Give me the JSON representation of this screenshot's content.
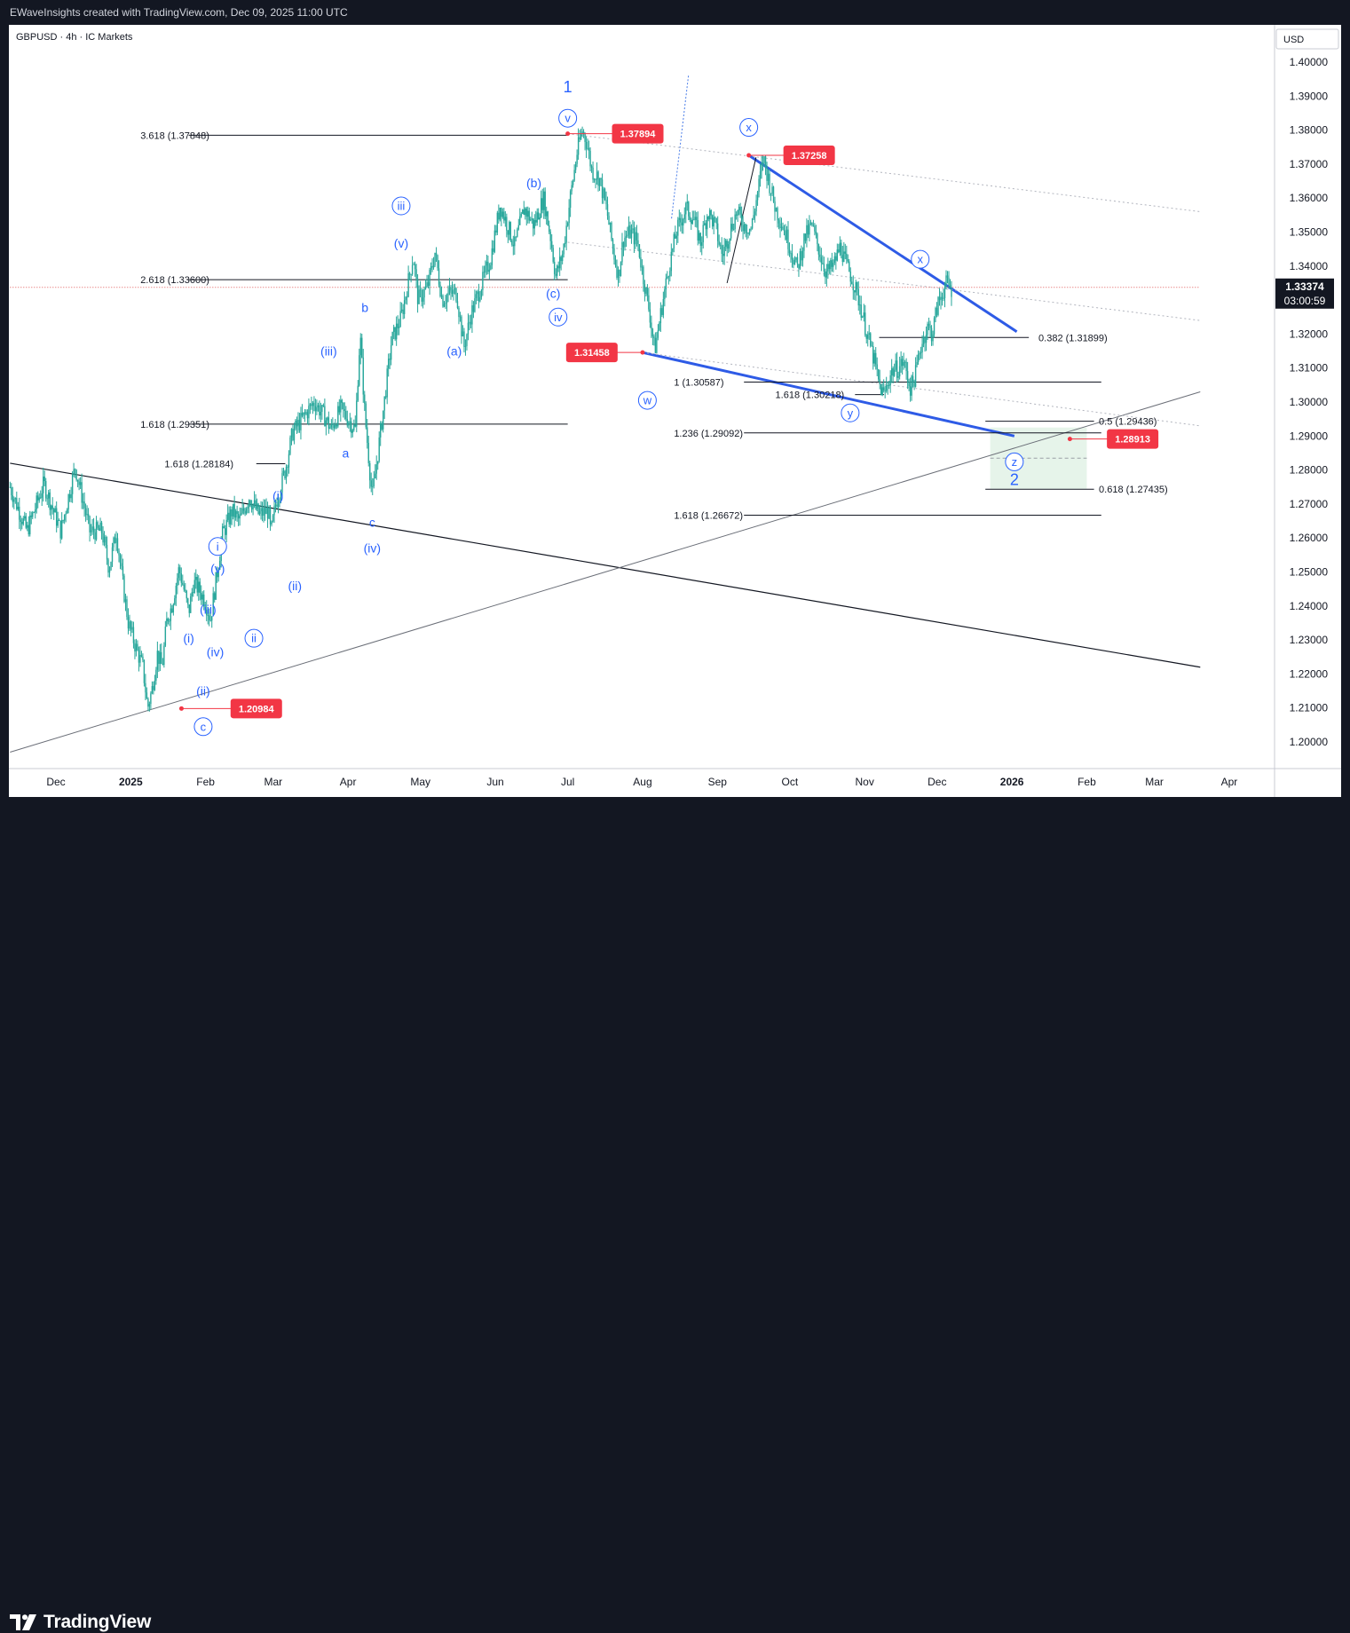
{
  "header": {
    "text": "EWaveInsights created with TradingView.com, Dec 09, 2025 11:00 UTC"
  },
  "symbol_info": "GBPUSD · 4h · IC Markets",
  "currency": "USD",
  "branding": {
    "name": "TradingView",
    "logo_icon": "tradingview-logo-icon"
  },
  "last_price": {
    "value": "1.33374",
    "countdown": "03:00:59"
  },
  "colors": {
    "background": "#131722",
    "pane": "#ffffff",
    "candle": "#26a69a",
    "wave_label": "#2962ff",
    "blue_line": "#2e5be6",
    "red_badge": "#f23645",
    "target_zone": "#e6f4ea"
  },
  "chart_data": {
    "type": "candlestick",
    "symbol": "GBPUSD",
    "interval": "4h",
    "broker": "IC Markets",
    "ylim": [
      1.19,
      1.41
    ],
    "y_ticks": [
      "1.40000",
      "1.39000",
      "1.38000",
      "1.37000",
      "1.36000",
      "1.35000",
      "1.34000",
      "1.33000",
      "1.32000",
      "1.31000",
      "1.30000",
      "1.29000",
      "1.28000",
      "1.27000",
      "1.26000",
      "1.25000",
      "1.24000",
      "1.23000",
      "1.22000",
      "1.21000",
      "1.20000"
    ],
    "x_ticks": [
      {
        "label": "Dec",
        "day": 0,
        "bold": false
      },
      {
        "label": "2025",
        "day": 31,
        "bold": true
      },
      {
        "label": "Feb",
        "day": 62,
        "bold": false
      },
      {
        "label": "Mar",
        "day": 90,
        "bold": false
      },
      {
        "label": "Apr",
        "day": 121,
        "bold": false
      },
      {
        "label": "May",
        "day": 151,
        "bold": false
      },
      {
        "label": "Jun",
        "day": 182,
        "bold": false
      },
      {
        "label": "Jul",
        "day": 212,
        "bold": false
      },
      {
        "label": "Aug",
        "day": 243,
        "bold": false
      },
      {
        "label": "Sep",
        "day": 274,
        "bold": false
      },
      {
        "label": "Oct",
        "day": 304,
        "bold": false
      },
      {
        "label": "Nov",
        "day": 335,
        "bold": false
      },
      {
        "label": "Dec",
        "day": 365,
        "bold": false
      },
      {
        "label": "2026",
        "day": 396,
        "bold": true
      },
      {
        "label": "Feb",
        "day": 427,
        "bold": false
      },
      {
        "label": "Mar",
        "day": 455,
        "bold": false
      },
      {
        "label": "Apr",
        "day": 486,
        "bold": false
      }
    ],
    "price_path": [
      [
        -19,
        1.275
      ],
      [
        -12,
        1.262
      ],
      [
        -5,
        1.276
      ],
      [
        2,
        1.262
      ],
      [
        8,
        1.281
      ],
      [
        14,
        1.262
      ],
      [
        19,
        1.262
      ],
      [
        22,
        1.251
      ],
      [
        25,
        1.262
      ],
      [
        28,
        1.245
      ],
      [
        30,
        1.235
      ],
      [
        33,
        1.228
      ],
      [
        36,
        1.222
      ],
      [
        38,
        1.21
      ],
      [
        40,
        1.216
      ],
      [
        42,
        1.226
      ],
      [
        44,
        1.222
      ],
      [
        46,
        1.236
      ],
      [
        48,
        1.24
      ],
      [
        51,
        1.251
      ],
      [
        53,
        1.245
      ],
      [
        55,
        1.238
      ],
      [
        57,
        1.247
      ],
      [
        60,
        1.244
      ],
      [
        62,
        1.241
      ],
      [
        64,
        1.236
      ],
      [
        66,
        1.246
      ],
      [
        69,
        1.261
      ],
      [
        73,
        1.268
      ],
      [
        76,
        1.265
      ],
      [
        80,
        1.272
      ],
      [
        84,
        1.267
      ],
      [
        88,
        1.268
      ],
      [
        89,
        1.261
      ],
      [
        91,
        1.27
      ],
      [
        95,
        1.28
      ],
      [
        98,
        1.291
      ],
      [
        103,
        1.296
      ],
      [
        107,
        1.3
      ],
      [
        111,
        1.296
      ],
      [
        114,
        1.292
      ],
      [
        118,
        1.298
      ],
      [
        121,
        1.295
      ],
      [
        124,
        1.292
      ],
      [
        126,
        1.32
      ],
      [
        128,
        1.296
      ],
      [
        131,
        1.272
      ],
      [
        133,
        1.283
      ],
      [
        136,
        1.3
      ],
      [
        139,
        1.318
      ],
      [
        143,
        1.325
      ],
      [
        145,
        1.332
      ],
      [
        148,
        1.343
      ],
      [
        150,
        1.33
      ],
      [
        154,
        1.334
      ],
      [
        157,
        1.344
      ],
      [
        160,
        1.33
      ],
      [
        163,
        1.332
      ],
      [
        166,
        1.332
      ],
      [
        169,
        1.316
      ],
      [
        172,
        1.326
      ],
      [
        176,
        1.334
      ],
      [
        180,
        1.342
      ],
      [
        184,
        1.358
      ],
      [
        187,
        1.352
      ],
      [
        190,
        1.346
      ],
      [
        194,
        1.357
      ],
      [
        198,
        1.352
      ],
      [
        202,
        1.36
      ],
      [
        205,
        1.348
      ],
      [
        207,
        1.337
      ],
      [
        210,
        1.344
      ],
      [
        213,
        1.36
      ],
      [
        216,
        1.374
      ],
      [
        218,
        1.38
      ],
      [
        220,
        1.376
      ],
      [
        222,
        1.368
      ],
      [
        225,
        1.366
      ],
      [
        228,
        1.357
      ],
      [
        231,
        1.344
      ],
      [
        233,
        1.337
      ],
      [
        235,
        1.348
      ],
      [
        238,
        1.35
      ],
      [
        241,
        1.347
      ],
      [
        243,
        1.338
      ],
      [
        246,
        1.326
      ],
      [
        248,
        1.315
      ],
      [
        251,
        1.328
      ],
      [
        254,
        1.34
      ],
      [
        257,
        1.35
      ],
      [
        261,
        1.357
      ],
      [
        264,
        1.354
      ],
      [
        267,
        1.347
      ],
      [
        270,
        1.356
      ],
      [
        273,
        1.352
      ],
      [
        276,
        1.343
      ],
      [
        279,
        1.35
      ],
      [
        282,
        1.356
      ],
      [
        285,
        1.352
      ],
      [
        288,
        1.351
      ],
      [
        291,
        1.363
      ],
      [
        293,
        1.372
      ],
      [
        295,
        1.366
      ],
      [
        298,
        1.357
      ],
      [
        301,
        1.352
      ],
      [
        304,
        1.346
      ],
      [
        307,
        1.339
      ],
      [
        310,
        1.348
      ],
      [
        313,
        1.352
      ],
      [
        316,
        1.345
      ],
      [
        319,
        1.338
      ],
      [
        322,
        1.34
      ],
      [
        325,
        1.346
      ],
      [
        327,
        1.341
      ],
      [
        330,
        1.336
      ],
      [
        333,
        1.329
      ],
      [
        336,
        1.32
      ],
      [
        339,
        1.312
      ],
      [
        341,
        1.305
      ],
      [
        343,
        1.302
      ],
      [
        346,
        1.309
      ],
      [
        349,
        1.31
      ],
      [
        351,
        1.312
      ],
      [
        354,
        1.304
      ],
      [
        356,
        1.308
      ],
      [
        358,
        1.316
      ],
      [
        361,
        1.322
      ],
      [
        363,
        1.32
      ],
      [
        365,
        1.328
      ],
      [
        367,
        1.332
      ],
      [
        369,
        1.335
      ],
      [
        371,
        1.333
      ]
    ],
    "wave_labels": [
      {
        "text": "1",
        "day": 212,
        "price": 1.393,
        "style": "plain-large"
      },
      {
        "text": "v",
        "day": 212,
        "price": 1.3835,
        "style": "circle"
      },
      {
        "text": "(b)",
        "day": 198,
        "price": 1.3645,
        "style": "plain"
      },
      {
        "text": "iii",
        "day": 143,
        "price": 1.3577,
        "style": "circle"
      },
      {
        "text": "(v)",
        "day": 143,
        "price": 1.3468,
        "style": "plain"
      },
      {
        "text": "(c)",
        "day": 206,
        "price": 1.332,
        "style": "plain"
      },
      {
        "text": "iv",
        "day": 208,
        "price": 1.325,
        "style": "circle"
      },
      {
        "text": "b",
        "day": 128,
        "price": 1.3278,
        "style": "plain"
      },
      {
        "text": "(iii)",
        "day": 113,
        "price": 1.315,
        "style": "plain"
      },
      {
        "text": "(a)",
        "day": 165,
        "price": 1.315,
        "style": "plain"
      },
      {
        "text": "a",
        "day": 120,
        "price": 1.285,
        "style": "plain"
      },
      {
        "text": "c",
        "day": 131,
        "price": 1.2646,
        "style": "plain"
      },
      {
        "text": "(iv)",
        "day": 131,
        "price": 1.257,
        "style": "plain"
      },
      {
        "text": "(i)",
        "day": 92,
        "price": 1.2725,
        "style": "plain"
      },
      {
        "text": "i",
        "day": 67,
        "price": 1.2575,
        "style": "circle"
      },
      {
        "text": "(v)",
        "day": 67,
        "price": 1.251,
        "style": "plain"
      },
      {
        "text": "(ii)",
        "day": 99,
        "price": 1.246,
        "style": "plain"
      },
      {
        "text": "(iii)",
        "day": 63,
        "price": 1.239,
        "style": "plain"
      },
      {
        "text": "ii",
        "day": 82,
        "price": 1.2305,
        "style": "circle"
      },
      {
        "text": "(i)",
        "day": 55,
        "price": 1.2305,
        "style": "plain"
      },
      {
        "text": "(iv)",
        "day": 66,
        "price": 1.2265,
        "style": "plain"
      },
      {
        "text": "(ii)",
        "day": 61,
        "price": 1.215,
        "style": "plain"
      },
      {
        "text": "c",
        "day": 61,
        "price": 1.2045,
        "style": "circle"
      },
      {
        "text": "x",
        "day": 287,
        "price": 1.3808,
        "style": "circle"
      },
      {
        "text": "w",
        "day": 245,
        "price": 1.3005,
        "style": "circle"
      },
      {
        "text": "x",
        "day": 358,
        "price": 1.342,
        "style": "circle"
      },
      {
        "text": "y",
        "day": 329,
        "price": 1.2968,
        "style": "circle"
      },
      {
        "text": "z",
        "day": 397,
        "price": 1.2824,
        "style": "circle"
      },
      {
        "text": "2",
        "day": 397,
        "price": 1.2774,
        "style": "plain-large"
      }
    ],
    "price_badges": [
      {
        "text": "1.37894",
        "day": 212,
        "price": 1.37894,
        "label_day": 241
      },
      {
        "text": "1.37258",
        "day": 287,
        "price": 1.37258,
        "label_day": 312
      },
      {
        "text": "1.31458",
        "day": 243,
        "price": 1.31458,
        "label_day": 222
      },
      {
        "text": "1.28913",
        "day": 420,
        "price": 1.28913,
        "label_day": 446
      },
      {
        "text": "1.20984",
        "day": 52,
        "price": 1.20984,
        "label_day": 83
      }
    ],
    "fib_levels": [
      {
        "text": "3.618 (1.37848)",
        "price": 1.37848,
        "x1": 55,
        "x2": 212,
        "label_day": 35
      },
      {
        "text": "2.618 (1.33600)",
        "price": 1.336,
        "x1": 55,
        "x2": 212,
        "label_day": 35
      },
      {
        "text": "1.618 (1.29351)",
        "price": 1.29351,
        "x1": 55,
        "x2": 212,
        "label_day": 35
      },
      {
        "text": "1.618 (1.28184)",
        "price": 1.28184,
        "x1": 83,
        "x2": 95,
        "label_day": 45
      },
      {
        "text": "0.382 (1.31899)",
        "price": 1.31899,
        "x1": 341,
        "x2": 403,
        "label_day": 407
      },
      {
        "text": "1 (1.30587)",
        "price": 1.30587,
        "x1": 285,
        "x2": 433,
        "label_day": 256
      },
      {
        "text": "1.618 (1.30218)",
        "price": 1.30218,
        "x1": 331,
        "x2": 343,
        "label_day": 298
      },
      {
        "text": "0.5 (1.29436)",
        "price": 1.29436,
        "x1": 385,
        "x2": 430,
        "label_day": 432
      },
      {
        "text": "1.236 (1.29092)",
        "price": 1.29092,
        "x1": 285,
        "x2": 433,
        "label_day": 256
      },
      {
        "text": "0.618 (1.27435)",
        "price": 1.27435,
        "x1": 385,
        "x2": 430,
        "label_day": 432
      },
      {
        "text": "1.618 (1.26672)",
        "price": 1.26672,
        "x1": 285,
        "x2": 433,
        "label_day": 256
      }
    ],
    "target_zone": {
      "day_start": 387,
      "day_end": 427,
      "price_top": 1.2925,
      "price_bottom": 1.2745
    },
    "trendlines": [
      {
        "p1": [
          -19,
          1.282
        ],
        "p2": [
          474,
          1.222
        ],
        "style": "black"
      },
      {
        "p1": [
          -19,
          1.197
        ],
        "p2": [
          474,
          1.303
        ],
        "style": "gray"
      },
      {
        "p1": [
          287,
          1.37258
        ],
        "p2": [
          398,
          1.3207
        ],
        "style": "blue"
      },
      {
        "p1": [
          243,
          1.31458
        ],
        "p2": [
          397,
          1.29
        ],
        "style": "blue"
      },
      {
        "p1": [
          212,
          1.37894
        ],
        "p2": [
          474,
          1.356
        ],
        "style": "dotted"
      },
      {
        "p1": [
          212,
          1.347
        ],
        "p2": [
          474,
          1.324
        ],
        "style": "dotted"
      },
      {
        "p1": [
          243,
          1.31458
        ],
        "p2": [
          474,
          1.293
        ],
        "style": "dotted"
      },
      {
        "p1": [
          278,
          1.335
        ],
        "p2": [
          290,
          1.372
        ],
        "style": "black-thin"
      },
      {
        "p1": [
          255,
          1.354
        ],
        "p2": [
          262,
          1.396
        ],
        "style": "blue-dotted"
      },
      {
        "p1": [
          -19,
          1.33374
        ],
        "p2": [
          474,
          1.33374
        ],
        "style": "red-dotted"
      }
    ]
  }
}
